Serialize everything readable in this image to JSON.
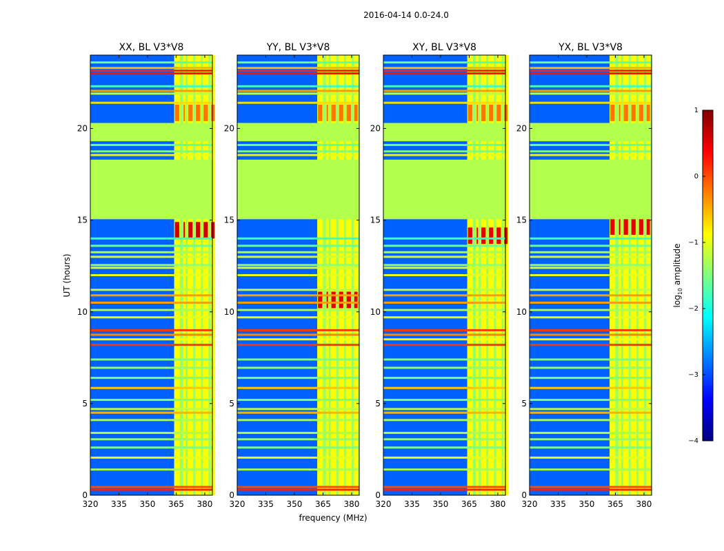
{
  "chart_data": {
    "type": "heatmap",
    "suptitle": "2016-04-14 0.0-24.0",
    "xlabel": "frequency (MHz)",
    "ylabel": "UT (hours)",
    "xlim": [
      320,
      384
    ],
    "ylim": [
      0,
      24
    ],
    "xticks": [
      320,
      335,
      350,
      365,
      380
    ],
    "yticks": [
      0,
      5,
      10,
      15,
      20
    ],
    "colorbar": {
      "label": "log₁₀ amplitude",
      "label_base": "log",
      "label_sub": "10",
      "label_rest": " amplitude",
      "range": [
        -4,
        1
      ],
      "ticks": [
        {
          "value": 1,
          "label": "1"
        },
        {
          "value": 0,
          "label": "0"
        },
        {
          "value": -1,
          "label": "−1"
        },
        {
          "value": -2,
          "label": "−2"
        },
        {
          "value": -3,
          "label": "−3"
        },
        {
          "value": -4,
          "label": "−4"
        }
      ],
      "colormap": [
        "#00007f",
        "#0000ff",
        "#007fff",
        "#00ffff",
        "#7fff7f",
        "#ffff00",
        "#ff7f00",
        "#ff0000",
        "#7f0000"
      ]
    },
    "background_value": -2.9,
    "flagged_value": -1.25,
    "flagged_ranges": [
      [
        15.05,
        18.3
      ],
      [
        19.3,
        20.3
      ]
    ],
    "rfi_band": {
      "start": 360.5,
      "end": 384
    },
    "rfi_channels": [
      [
        360.5,
        363.5
      ],
      [
        365,
        366.5
      ],
      [
        367.5,
        370.5
      ],
      [
        371.5,
        374.5
      ],
      [
        375.5,
        378.5
      ],
      [
        379.5,
        382
      ]
    ],
    "rfi_value": -0.9,
    "broadband_lines": [
      {
        "t": 0.3,
        "v": 0.2
      },
      {
        "t": 0.45,
        "v": 0.0
      },
      {
        "t": 1.4,
        "v": -1.3
      },
      {
        "t": 2.05,
        "v": -1.0
      },
      {
        "t": 2.6,
        "v": -1.5
      },
      {
        "t": 3.05,
        "v": -1.4
      },
      {
        "t": 3.4,
        "v": -1.3
      },
      {
        "t": 4.1,
        "v": -1.3
      },
      {
        "t": 4.5,
        "v": -0.5
      },
      {
        "t": 4.7,
        "v": -1.2
      },
      {
        "t": 5.2,
        "v": -1.5
      },
      {
        "t": 5.85,
        "v": -0.6
      },
      {
        "t": 6.4,
        "v": -1.5
      },
      {
        "t": 6.95,
        "v": -1.4
      },
      {
        "t": 7.4,
        "v": -1.5
      },
      {
        "t": 8.2,
        "v": 0.1
      },
      {
        "t": 8.5,
        "v": -0.9
      },
      {
        "t": 8.75,
        "v": -0.3
      },
      {
        "t": 9.0,
        "v": 0.1
      },
      {
        "t": 9.7,
        "v": -1.0
      },
      {
        "t": 10.1,
        "v": -1.3
      },
      {
        "t": 10.5,
        "v": -0.4
      },
      {
        "t": 10.9,
        "v": -0.4
      },
      {
        "t": 11.2,
        "v": -1.2
      },
      {
        "t": 12.0,
        "v": -1.0
      },
      {
        "t": 12.4,
        "v": -1.1
      },
      {
        "t": 12.55,
        "v": -1.4
      },
      {
        "t": 13.0,
        "v": -1.1
      },
      {
        "t": 13.25,
        "v": -1.3
      },
      {
        "t": 13.6,
        "v": -1.6
      },
      {
        "t": 14.0,
        "v": -1.8
      },
      {
        "t": 18.55,
        "v": -1.0
      },
      {
        "t": 18.75,
        "v": -1.5
      },
      {
        "t": 19.1,
        "v": -1.6
      },
      {
        "t": 21.4,
        "v": -0.7
      },
      {
        "t": 21.9,
        "v": -1.2
      },
      {
        "t": 22.05,
        "v": -0.4
      },
      {
        "t": 22.3,
        "v": -1.8
      },
      {
        "t": 23.0,
        "v": 0.3
      },
      {
        "t": 23.15,
        "v": 0.2
      },
      {
        "t": 23.3,
        "v": -0.5
      },
      {
        "t": 23.6,
        "v": -1.6
      }
    ],
    "panels": [
      {
        "title": "XX, BL V3*V8",
        "rfi_start": 364,
        "peak_start": 14.0,
        "peak_value": 0.6
      },
      {
        "title": "YY, BL V3*V8",
        "rfi_start": 362,
        "peak_start": 10.2,
        "peak_value": 0.5
      },
      {
        "title": "XY, BL V3*V8",
        "rfi_start": 364,
        "peak_start": 13.7,
        "peak_value": 0.5
      },
      {
        "title": "YX, BL V3*V8",
        "rfi_start": 362,
        "peak_start": 14.2,
        "peak_value": 0.5
      }
    ]
  }
}
